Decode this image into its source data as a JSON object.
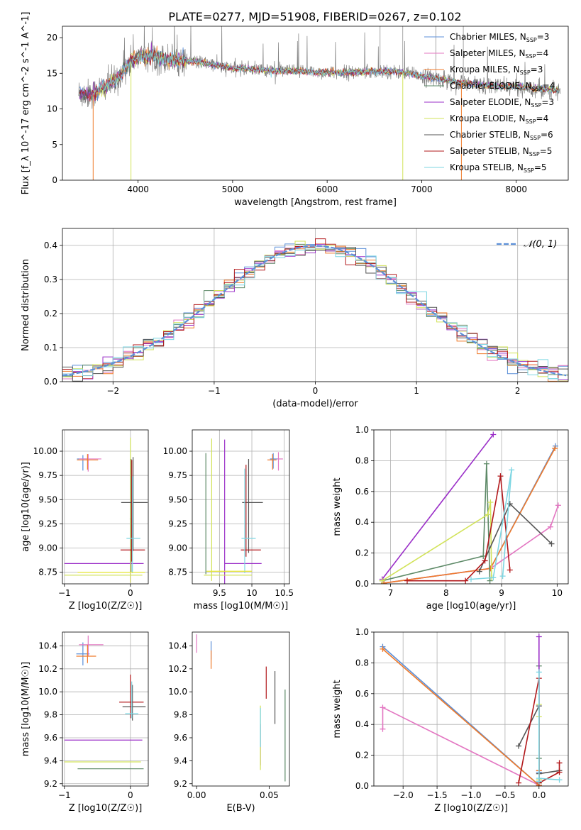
{
  "figure": {
    "title": "PLATE=0277, MJD=51908, FIBERID=0267, z=0.102"
  },
  "chart_data": [
    {
      "id": "spectrum",
      "type": "line",
      "title": "PLATE=0277, MJD=51908, FIBERID=0267, z=0.102",
      "xlabel": "wavelength [Angstrom, rest frame]",
      "ylabel": "Flux [f_λ 10^-17 erg cm^-2 s^-1 A^-1]",
      "xlim": [
        3200,
        8550
      ],
      "ylim": [
        0,
        21.6
      ],
      "xticks": [
        4000,
        5000,
        6000,
        7000,
        8000
      ],
      "yticks": [
        0,
        5,
        10,
        15,
        20
      ],
      "grid": false,
      "legend_placement": "right",
      "data_color": "#808080",
      "series": [
        {
          "name": "Chabrier MILES, N_SSP=3",
          "color": "#5b8fd8"
        },
        {
          "name": "Salpeter MILES, N_SSP=4",
          "color": "#e377c2"
        },
        {
          "name": "Kroupa MILES, N_SSP=3",
          "color": "#ef7a2a"
        },
        {
          "name": "Chabrier ELODIE, N_SSP=4",
          "color": "#5e8a68"
        },
        {
          "name": "Salpeter ELODIE, N_SSP=3",
          "color": "#9b30c8"
        },
        {
          "name": "Kroupa ELODIE, N_SSP=4",
          "color": "#d2e35a"
        },
        {
          "name": "Chabrier STELIB, N_SSP=6",
          "color": "#555555"
        },
        {
          "name": "Salpeter STELIB, N_SSP=5",
          "color": "#b2181b"
        },
        {
          "name": "Kroupa STELIB, N_SSP=5",
          "color": "#7dd6e2"
        }
      ],
      "flux_profile": {
        "x": [
          3370,
          3450,
          3530,
          3600,
          3700,
          3800,
          3900,
          4000,
          4100,
          4200,
          4300,
          4400,
          4500,
          4600,
          4700,
          4800,
          4900,
          5000,
          5200,
          5400,
          5600,
          5800,
          6000,
          6200,
          6400,
          6600,
          6800,
          7000,
          7200,
          7400,
          7600,
          7800,
          8000,
          8200,
          8400,
          8550
        ],
        "y": [
          12.2,
          12.0,
          12.2,
          12.8,
          13.5,
          14.6,
          16.5,
          17.2,
          17.4,
          17.3,
          16.9,
          17.0,
          16.8,
          16.6,
          16.5,
          16.2,
          15.9,
          15.7,
          15.6,
          15.4,
          15.3,
          15.2,
          15.1,
          15.1,
          15.2,
          15.3,
          15.1,
          14.6,
          14.2,
          13.7,
          13.4,
          13.2,
          13.1,
          12.9,
          12.6,
          12.5
        ]
      }
    },
    {
      "id": "residuals",
      "type": "line",
      "xlabel": "(data-model)/error",
      "ylabel": "Normed distribution",
      "xlim": [
        -2.5,
        2.5
      ],
      "ylim": [
        0,
        0.45
      ],
      "xticks": [
        -2,
        -1,
        0,
        1,
        2
      ],
      "yticks": [
        0.0,
        0.1,
        0.2,
        0.3,
        0.4
      ],
      "grid": true,
      "legend": "𝒩(0, 1)",
      "legend_placement": "top-right",
      "gaussian_color": "#5b8fd8"
    },
    {
      "id": "age_vs_Z",
      "type": "scatter",
      "xlabel": "Z [log10(Z/Z☉)]",
      "ylabel": "age  [log10(age/yr)]",
      "xlim": [
        -1.03,
        0.27
      ],
      "ylim": [
        8.63,
        10.22
      ],
      "xticks": [
        -1,
        0
      ],
      "yticks": [
        8.75,
        9.0,
        9.25,
        9.5,
        9.75,
        10.0
      ],
      "grid": true,
      "points": [
        {
          "c": "Chabrier MILES",
          "x": -0.72,
          "y": 9.92,
          "xe": [
            0.09,
            0.09
          ],
          "ye": [
            0.12,
            0.04
          ]
        },
        {
          "c": "Salpeter MILES",
          "x": -0.64,
          "y": 9.92,
          "xe": [
            0.14,
            0.2
          ],
          "ye": [
            0.13,
            0.05
          ]
        },
        {
          "c": "Kroupa MILES",
          "x": -0.65,
          "y": 9.91,
          "xe": [
            0.16,
            0.16
          ],
          "ye": [
            0.1,
            0.06
          ]
        },
        {
          "c": "Chabrier ELODIE",
          "x": 0.01,
          "y": 9.3,
          "xe": [
            0.02,
            0.02
          ],
          "ye": [
            0.55,
            0.62
          ]
        },
        {
          "c": "Salpeter ELODIE",
          "x": 0.0,
          "y": 8.84,
          "xe": [
            1.0,
            0.2
          ],
          "ye": [
            0.2,
            1.08
          ]
        },
        {
          "c": "Kroupa ELODIE",
          "x": 0.0,
          "y": 8.72,
          "xe": [
            1.0,
            0.18
          ],
          "ye": [
            0.08,
            1.42
          ]
        },
        {
          "c": "Chabrier STELIB",
          "x": 0.04,
          "y": 9.47,
          "xe": [
            0.18,
            0.22
          ],
          "ye": [
            0.5,
            0.47
          ]
        },
        {
          "c": "Salpeter STELIB",
          "x": 0.02,
          "y": 8.98,
          "xe": [
            0.17,
            0.2
          ],
          "ye": [
            0.12,
            0.93
          ]
        },
        {
          "c": "Kroupa STELIB",
          "x": 0.03,
          "y": 9.1,
          "xe": [
            0.09,
            0.12
          ],
          "ye": [
            0.36,
            0.64
          ]
        },
        {
          "c": "_extra",
          "x": -0.08,
          "y": 8.75,
          "xe": [
            0.72,
            0.3
          ],
          "ye": [
            0.0,
            0.0
          ]
        }
      ]
    },
    {
      "id": "age_vs_mass",
      "type": "scatter",
      "xlabel": "mass [log10(M/M☉)]",
      "ylabel": "",
      "xlim": [
        9.08,
        10.58
      ],
      "ylim": [
        8.63,
        10.22
      ],
      "xticks": [
        9.5,
        10.0,
        10.5
      ],
      "yticks": [
        8.75,
        9.0,
        9.25,
        9.5,
        9.75,
        10.0
      ],
      "grid": true,
      "points": [
        {
          "c": "Chabrier MILES",
          "x": 10.33,
          "y": 9.92,
          "xe": [
            0.05,
            0.08
          ],
          "ye": [
            0.1,
            0.06
          ]
        },
        {
          "c": "Salpeter MILES",
          "x": 10.41,
          "y": 9.92,
          "xe": [
            0.02,
            0.07
          ],
          "ye": [
            0.12,
            0.07
          ]
        },
        {
          "c": "Kroupa MILES",
          "x": 10.32,
          "y": 9.91,
          "xe": [
            0.08,
            0.06
          ],
          "ye": [
            0.1,
            0.06
          ]
        },
        {
          "c": "Chabrier ELODIE",
          "x": 9.29,
          "y": 9.3,
          "xe": [
            0.0,
            0.0
          ],
          "ye": [
            0.57,
            0.68
          ]
        },
        {
          "c": "Salpeter ELODIE",
          "x": 9.58,
          "y": 8.84,
          "xe": [
            0.0,
            0.57
          ],
          "ye": [
            0.22,
            1.28
          ]
        },
        {
          "c": "Kroupa ELODIE",
          "x": 9.38,
          "y": 8.72,
          "xe": [
            0.12,
            0.62
          ],
          "ye": [
            0.06,
            1.41
          ]
        },
        {
          "c": "Chabrier STELIB",
          "x": 9.95,
          "y": 9.47,
          "xe": [
            0.1,
            0.22
          ],
          "ye": [
            0.52,
            0.45
          ]
        },
        {
          "c": "Salpeter STELIB",
          "x": 9.91,
          "y": 8.98,
          "xe": [
            0.08,
            0.23
          ],
          "ye": [
            0.07,
            0.88
          ]
        },
        {
          "c": "Kroupa STELIB",
          "x": 9.89,
          "y": 9.1,
          "xe": [
            0.05,
            0.17
          ],
          "ye": [
            0.36,
            0.72
          ]
        },
        {
          "c": "_extra",
          "x": 9.6,
          "y": 8.76,
          "xe": [
            0.3,
            0.4
          ],
          "ye": [
            0.0,
            0.0
          ]
        }
      ]
    },
    {
      "id": "weight_vs_age",
      "type": "line",
      "xlabel": "age  [log10(age/yr)]",
      "ylabel": "mass weight",
      "xlim": [
        6.7,
        10.2
      ],
      "ylim": [
        0,
        1.0
      ],
      "xticks": [
        7,
        8,
        9,
        10
      ],
      "yticks": [
        0.0,
        0.2,
        0.4,
        0.6,
        0.8,
        1.0
      ],
      "grid": true,
      "series": [
        {
          "name": "Chabrier MILES",
          "x": [
            6.88,
            8.8,
            9.97
          ],
          "y": [
            0.005,
            0.1,
            0.895
          ]
        },
        {
          "name": "Salpeter MILES",
          "x": [
            6.88,
            8.8,
            9.88,
            10.02
          ],
          "y": [
            0.005,
            0.1,
            0.37,
            0.51
          ]
        },
        {
          "name": "Kroupa MILES",
          "x": [
            6.88,
            8.8,
            9.96
          ],
          "y": [
            0.005,
            0.1,
            0.88
          ]
        },
        {
          "name": "Chabrier ELODIE",
          "x": [
            6.85,
            8.67,
            8.73,
            8.79
          ],
          "y": [
            0.02,
            0.18,
            0.78,
            0.02
          ]
        },
        {
          "name": "Salpeter ELODIE",
          "x": [
            6.85,
            8.85
          ],
          "y": [
            0.03,
            0.97
          ]
        },
        {
          "name": "Kroupa ELODIE",
          "x": [
            6.85,
            8.75,
            8.8,
            8.82
          ],
          "y": [
            0.02,
            0.45,
            0.53,
            0.04
          ]
        },
        {
          "name": "Chabrier STELIB",
          "x": [
            8.6,
            9.15,
            9.9
          ],
          "y": [
            0.08,
            0.52,
            0.26
          ]
        },
        {
          "name": "Salpeter STELIB",
          "x": [
            7.3,
            8.35,
            8.7,
            8.98,
            9.15
          ],
          "y": [
            0.02,
            0.02,
            0.15,
            0.7,
            0.09
          ]
        },
        {
          "name": "Kroupa STELIB",
          "x": [
            8.45,
            8.85,
            9.18,
            9.02
          ],
          "y": [
            0.03,
            0.04,
            0.74,
            0.05
          ]
        }
      ]
    },
    {
      "id": "mass_vs_Z",
      "type": "scatter",
      "xlabel": "Z [log10(Z/Z☉)]",
      "ylabel": "mass [log10(M/M☉)]",
      "xlim": [
        -1.03,
        0.27
      ],
      "ylim": [
        9.18,
        10.52
      ],
      "xticks": [
        -1,
        0
      ],
      "yticks": [
        9.2,
        9.4,
        9.6,
        9.8,
        10.0,
        10.2,
        10.4
      ],
      "grid": true,
      "points": [
        {
          "c": "Chabrier MILES",
          "x": -0.72,
          "y": 10.33,
          "xe": [
            0.1,
            0.1
          ],
          "ye": [
            0.1,
            0.1
          ]
        },
        {
          "c": "Salpeter MILES",
          "x": -0.64,
          "y": 10.41,
          "xe": [
            0.14,
            0.23
          ],
          "ye": [
            0.1,
            0.08
          ]
        },
        {
          "c": "Kroupa MILES",
          "x": -0.65,
          "y": 10.31,
          "xe": [
            0.17,
            0.13
          ],
          "ye": [
            0.06,
            0.1
          ]
        },
        {
          "c": "Chabrier ELODIE",
          "x": 0.0,
          "y": 9.33,
          "xe": [
            0.8,
            0.2
          ],
          "ye": [
            0.0,
            0.0
          ]
        },
        {
          "c": "Salpeter ELODIE",
          "x": 0.0,
          "y": 9.58,
          "xe": [
            1.0,
            0.18
          ],
          "ye": [
            0.0,
            0.0
          ]
        },
        {
          "c": "Kroupa ELODIE",
          "x": 0.0,
          "y": 9.39,
          "xe": [
            1.0,
            0.16
          ],
          "ye": [
            0.0,
            0.0
          ]
        },
        {
          "c": "Chabrier STELIB",
          "x": 0.03,
          "y": 9.87,
          "xe": [
            0.15,
            0.2
          ],
          "ye": [
            0.12,
            0.19
          ]
        },
        {
          "c": "Salpeter STELIB",
          "x": 0.0,
          "y": 9.91,
          "xe": [
            0.17,
            0.2
          ],
          "ye": [
            0.14,
            0.24
          ]
        },
        {
          "c": "Kroupa STELIB",
          "x": 0.02,
          "y": 9.81,
          "xe": [
            0.1,
            0.1
          ],
          "ye": [
            0.04,
            0.28
          ]
        }
      ]
    },
    {
      "id": "mass_vs_ebv",
      "type": "scatter",
      "xlabel": "E(B-V)",
      "ylabel": "",
      "xlim": [
        -0.003,
        0.064
      ],
      "ylim": [
        9.18,
        10.52
      ],
      "xticks": [
        0.0,
        0.05
      ],
      "xtick_labels": [
        "0.00",
        "0.05"
      ],
      "yticks": [
        9.2,
        9.4,
        9.6,
        9.8,
        10.0,
        10.2,
        10.4
      ],
      "grid": false,
      "points": [
        {
          "c": "Chabrier MILES",
          "x": 0.01,
          "y": 10.36,
          "ye": [
            0.08,
            0.08
          ]
        },
        {
          "c": "Salpeter MILES",
          "x": 0.0,
          "y": 10.42,
          "ye": [
            0.08,
            0.08
          ]
        },
        {
          "c": "Kroupa MILES",
          "x": 0.01,
          "y": 10.28,
          "ye": [
            0.08,
            0.08
          ]
        },
        {
          "c": "Chabrier ELODIE",
          "x": 0.061,
          "y": 9.62,
          "ye": [
            0.4,
            0.4
          ]
        },
        {
          "c": "Salpeter ELODIE",
          "x": 0.044,
          "y": 9.56,
          "ye": [
            0.2,
            0.16
          ]
        },
        {
          "c": "Kroupa ELODIE",
          "x": 0.044,
          "y": 9.58,
          "ye": [
            0.26,
            0.3
          ]
        },
        {
          "c": "Chabrier STELIB",
          "x": 0.054,
          "y": 9.86,
          "ye": [
            0.14,
            0.32
          ]
        },
        {
          "c": "Salpeter STELIB",
          "x": 0.048,
          "y": 10.08,
          "ye": [
            0.14,
            0.14
          ]
        },
        {
          "c": "Kroupa STELIB",
          "x": 0.044,
          "y": 9.7,
          "ye": [
            0.18,
            0.16
          ]
        }
      ]
    },
    {
      "id": "weight_vs_Z",
      "type": "line",
      "xlabel": "Z [log10(Z/Z☉)]",
      "ylabel": "mass weight",
      "xlim": [
        -2.43,
        0.43
      ],
      "ylim": [
        0,
        1.0
      ],
      "xticks": [
        -2.0,
        -1.5,
        -1.0,
        -0.5,
        0.0
      ],
      "xtick_labels": [
        "−2.0",
        "−1.5",
        "−1.0",
        "−0.5",
        "0.0"
      ],
      "yticks": [
        0.0,
        0.2,
        0.4,
        0.6,
        0.8,
        1.0
      ],
      "grid": true,
      "series": [
        {
          "name": "Chabrier MILES",
          "x": [
            -2.3,
            0.0,
            0.0
          ],
          "y": [
            0.905,
            0.005,
            0.09
          ]
        },
        {
          "name": "Salpeter MILES",
          "x": [
            -2.3,
            -2.3,
            0.0,
            0.0
          ],
          "y": [
            0.37,
            0.51,
            0.005,
            0.1
          ]
        },
        {
          "name": "Kroupa MILES",
          "x": [
            -2.3,
            0.0,
            0.0
          ],
          "y": [
            0.89,
            0.005,
            0.1
          ]
        },
        {
          "name": "Chabrier ELODIE",
          "x": [
            0.0,
            0.0,
            0.0,
            0.0
          ],
          "y": [
            0.02,
            0.18,
            0.78,
            0.02
          ]
        },
        {
          "name": "Salpeter ELODIE",
          "x": [
            0.0,
            0.0
          ],
          "y": [
            0.03,
            0.97
          ]
        },
        {
          "name": "Kroupa ELODIE",
          "x": [
            0.0,
            0.0,
            0.0,
            0.0
          ],
          "y": [
            0.02,
            0.45,
            0.53,
            0.04
          ]
        },
        {
          "name": "Chabrier STELIB",
          "x": [
            -0.3,
            0.0,
            0.0,
            0.3
          ],
          "y": [
            0.26,
            0.52,
            0.08,
            0.1
          ]
        },
        {
          "name": "Salpeter STELIB",
          "x": [
            -0.3,
            0.0,
            0.0,
            0.3,
            0.3
          ],
          "y": [
            0.02,
            0.7,
            0.02,
            0.09,
            0.15
          ]
        },
        {
          "name": "Kroupa STELIB",
          "x": [
            0.0,
            0.0,
            0.0,
            0.3
          ],
          "y": [
            0.74,
            0.03,
            0.05,
            0.04
          ]
        }
      ]
    }
  ]
}
